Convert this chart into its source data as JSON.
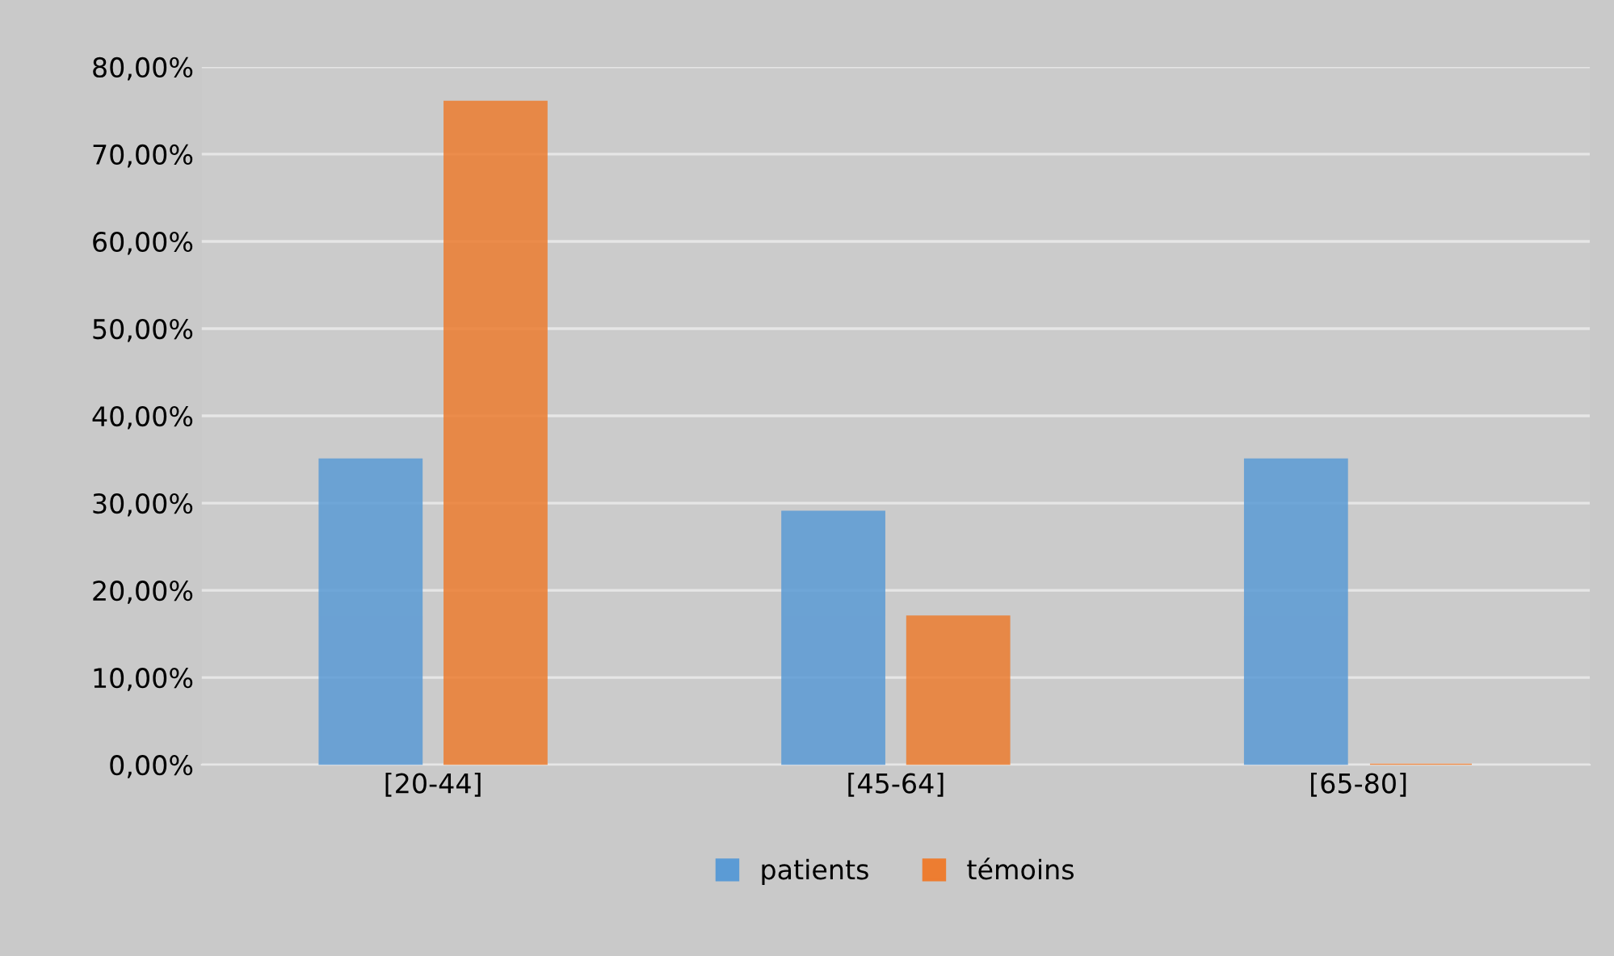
{
  "chart_data": {
    "type": "bar",
    "categories": [
      "[20-44]",
      "[45-64]",
      "[65-80]"
    ],
    "series": [
      {
        "name": "patients",
        "color": "#5b9bd5",
        "values": [
          35,
          29,
          35
        ]
      },
      {
        "name": "témoins",
        "color": "#ed7d31",
        "values": [
          76,
          17,
          0
        ]
      }
    ],
    "ylim": [
      0,
      80
    ],
    "yticks": [
      {
        "value": 0,
        "label": "0,00%"
      },
      {
        "value": 10,
        "label": "10,00%"
      },
      {
        "value": 20,
        "label": "20,00%"
      },
      {
        "value": 30,
        "label": "30,00%"
      },
      {
        "value": 40,
        "label": "40,00%"
      },
      {
        "value": 50,
        "label": "50,00%"
      },
      {
        "value": 60,
        "label": "60,00%"
      },
      {
        "value": 70,
        "label": "70,00%"
      },
      {
        "value": 80,
        "label": "80,00%"
      }
    ],
    "grid": "y",
    "legend": "bottom"
  }
}
